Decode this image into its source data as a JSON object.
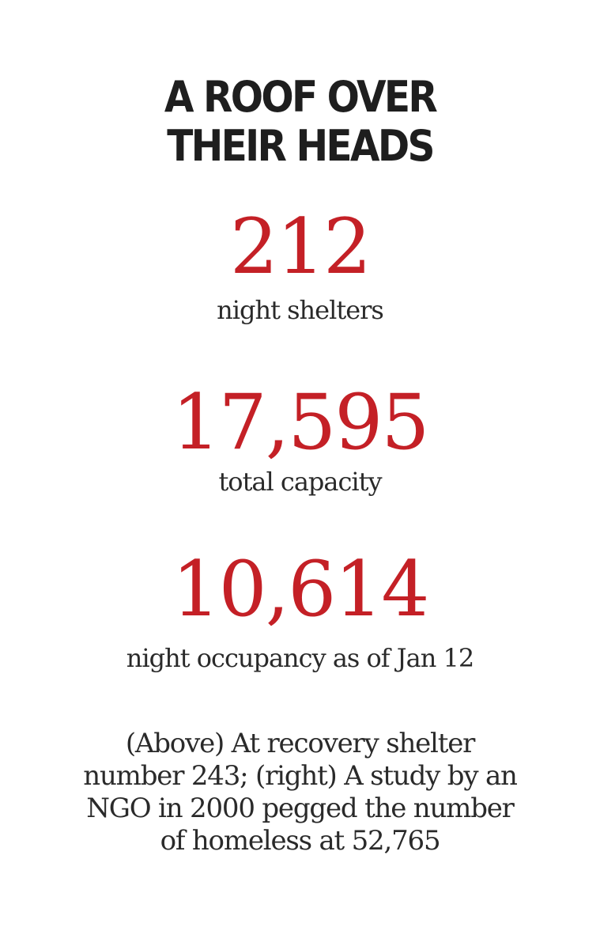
{
  "headline": {
    "line1": "A ROOF OVER",
    "line2": "THEIR HEADS"
  },
  "stats": [
    {
      "value": "212",
      "label": "night shelters"
    },
    {
      "value": "17,595",
      "label": "total capacity"
    },
    {
      "value": "10,614",
      "label": "night occupancy as of Jan 12"
    }
  ],
  "caption": {
    "line1": "(Above) At recovery shelter",
    "line2": "number 243; (right) A study by an",
    "line3": "NGO in 2000 pegged the number",
    "line4": "of homeless at 52,765"
  },
  "colors": {
    "accent": "#c42026",
    "text": "#2a2a2a",
    "background": "#ffffff"
  }
}
